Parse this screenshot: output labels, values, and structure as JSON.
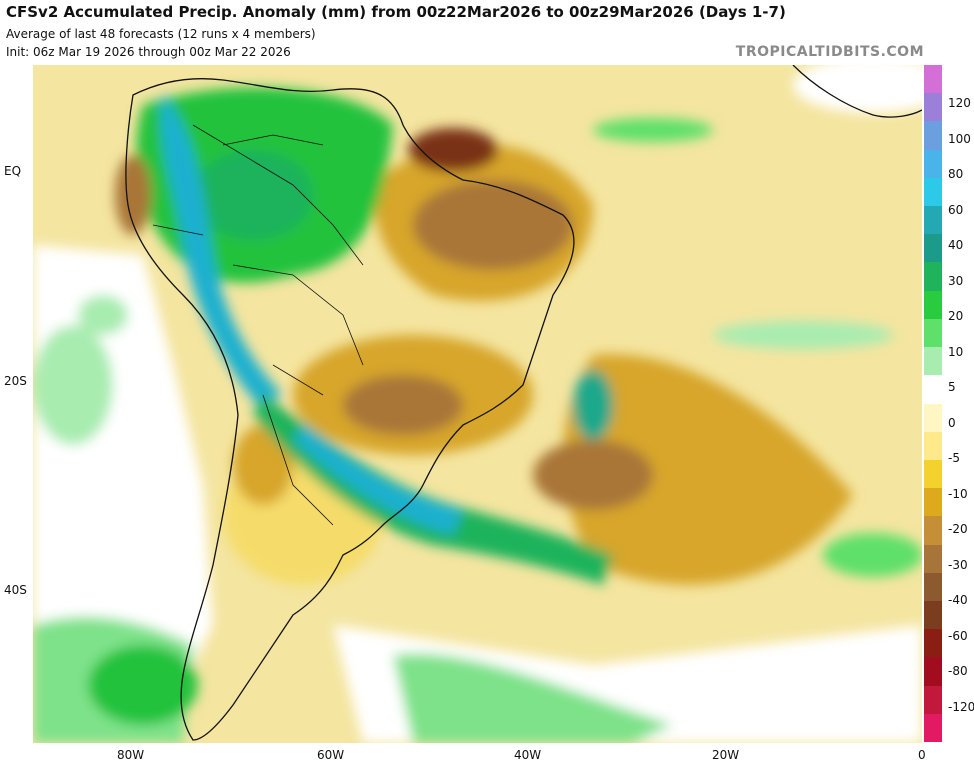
{
  "header": {
    "title": "CFSv2 Accumulated Precip. Anomaly (mm) from 00z22Mar2026 to 00z29Mar2026 (Days 1-7)",
    "subtitle_1": "Average of last 48 forecasts (12 runs x 4 members)",
    "subtitle_2": "Init: 06z Mar 19 2026 through 00z Mar 22 2026",
    "brand": "TROPICALTIDBITS.COM"
  },
  "axes": {
    "lat_labels": [
      "EQ",
      "20S",
      "40S"
    ],
    "lon_labels": [
      "80W",
      "60W",
      "40W",
      "20W",
      "0"
    ]
  },
  "colorbar": {
    "labels": [
      "120",
      "100",
      "80",
      "60",
      "40",
      "30",
      "20",
      "10",
      "5",
      "0",
      "-5",
      "-10",
      "-20",
      "-30",
      "-40",
      "-60",
      "-80",
      "-120"
    ],
    "colors": [
      "#d36fd6",
      "#9b7fd8",
      "#6c9fe0",
      "#4ab4ea",
      "#2cc9e8",
      "#24a8b4",
      "#1c9a8a",
      "#1fb35b",
      "#28cc3e",
      "#5ee06a",
      "#a8ecb0",
      "#ffffff",
      "#fff6c4",
      "#ffe98a",
      "#f3d22d",
      "#dcaa1c",
      "#c48f36",
      "#a7743a",
      "#8c5a2e",
      "#7a3e1f",
      "#8b1e12",
      "#a10d1e",
      "#c2183c",
      "#e21a63"
    ]
  },
  "map_colors": {
    "ocean_base": "#f4e5a0",
    "land_base": "#ffffff",
    "wet_light": "#7ee28a",
    "wet": "#23c23e",
    "wet_strong": "#1aa88a",
    "very_wet": "#1ab0cf",
    "dry_light": "#f5dc6a",
    "dry": "#d7a62a",
    "dry_strong": "#a97637",
    "very_dry": "#7a3018",
    "border": "#111111"
  }
}
